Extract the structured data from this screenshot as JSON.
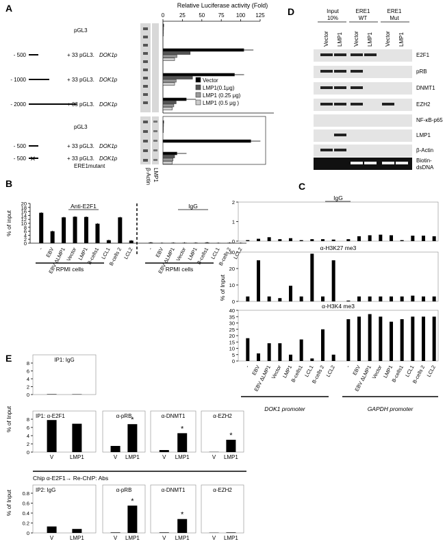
{
  "panels": {
    "A": {
      "letter": "A",
      "xlabel": "Relative Luciferase activity (Fold)",
      "xticks": [
        "0",
        "25",
        "50",
        "75",
        "100",
        "125"
      ],
      "xlim": [
        0,
        125
      ],
      "constructs": [
        {
          "label": "pGL3",
          "prefix": "",
          "suffix": ""
        },
        {
          "label": "+ 33 pGL3.",
          "prefix": "- 500",
          "suffix": "DOK1p"
        },
        {
          "label": "+ 33 pGL3.",
          "prefix": "- 1000",
          "suffix": "DOK1p"
        },
        {
          "label": "+ 33 pGL3.",
          "prefix": "- 2000",
          "suffix": "DOK1p"
        },
        {
          "label": "pGL3",
          "prefix": "",
          "suffix": ""
        },
        {
          "label": "+ 33 pGL3.",
          "prefix": "- 500",
          "suffix": "DOK1p"
        },
        {
          "label": "+ 33 pGL3.",
          "prefix": "- 500",
          "suffix": "DOK1p",
          "extra": "ERE1mutant"
        }
      ],
      "blot_labels": [
        "β-Actin",
        "LMP1"
      ],
      "legend": [
        "Vector",
        "LMP1(0.1μg)",
        "LMP1 (0.25 μg)",
        "LMP1 (0.5 μg )"
      ],
      "colors": [
        "#000000",
        "#555555",
        "#999999",
        "#cccccc"
      ],
      "chart_data": {
        "type": "bar",
        "orientation": "horizontal",
        "series": [
          "Vector",
          "LMP1(0.1μg)",
          "LMP1 (0.25 μg)",
          "LMP1 (0.5 μg )"
        ],
        "groups": [
          {
            "values": [
              1,
              0.8,
              0.6,
              0.5
            ]
          },
          {
            "values": [
              104,
              35,
              18,
              15
            ]
          },
          {
            "values": [
              92,
              38,
              17,
              15
            ]
          },
          {
            "values": [
              30,
              17,
              14,
              12
            ]
          },
          {
            "values": [
              1,
              0.8,
              0.6,
              0.5
            ]
          },
          {
            "values": [
              113,
              0,
              0,
              0
            ]
          },
          {
            "values": [
              18,
              15,
              13,
              12
            ]
          }
        ]
      }
    },
    "B": {
      "letter": "B",
      "ylabel": "% of  input",
      "yticks": [
        "0",
        "2",
        "4",
        "6",
        "8",
        "10",
        "12",
        "14",
        "16",
        "18",
        "20"
      ],
      "ylim": [
        0,
        20
      ],
      "group_labels": [
        "Anti-E2F1",
        "IgG"
      ],
      "categories": [
        "-",
        "EBV",
        "EBV ΔLMP1",
        "Vector",
        "LMP1",
        "B-cells1",
        "LCL1",
        "B-cells 2",
        "LCL2"
      ],
      "footer": [
        "RPMI cells",
        "RPMI cells"
      ],
      "chart_data": {
        "type": "bar",
        "series": [
          {
            "name": "Anti-E2F1",
            "values": [
              15.3,
              6.0,
              13.0,
              13.3,
              13.2,
              9.8,
              1.5,
              13.0,
              1.3
            ]
          },
          {
            "name": "IgG",
            "values": [
              0.3,
              0.1,
              0.2,
              0.2,
              0.2,
              0.3,
              0.1,
              0.2,
              0.1
            ]
          }
        ]
      }
    },
    "C": {
      "letter": "C",
      "ylabel": "% of Input",
      "categories": [
        "-",
        "EBV",
        "EBV ΔLMP1",
        "Vector",
        "LMP1",
        "B-cells1",
        "LCL1",
        "B-cells 2",
        "LCL2"
      ],
      "footer": [
        "DOK1 promoter",
        "GAPDH promoter"
      ],
      "chart_data": [
        {
          "type": "bar",
          "title": "IgG",
          "yticks": [
            "0",
            "1",
            "2"
          ],
          "ylim": [
            0,
            2
          ],
          "values": [
            0.05,
            0.12,
            0.2,
            0.1,
            0.15,
            0.05,
            0.1,
            0.1,
            0.08,
            0.1,
            0.25,
            0.3,
            0.33,
            0.3,
            0.05,
            0.28,
            0.28,
            0.25
          ]
        },
        {
          "type": "bar",
          "title": "α-H3K27 me3",
          "yticks": [
            "0",
            "10",
            "20",
            "30"
          ],
          "ylim": [
            0,
            30
          ],
          "values": [
            3,
            25,
            3,
            2,
            9.5,
            3,
            29,
            3,
            25,
            0.5,
            3,
            3,
            3,
            3,
            3,
            3.5,
            3,
            3
          ]
        },
        {
          "type": "bar",
          "title": "α-H3K4 me3",
          "yticks": [
            "0",
            "5",
            "10",
            "15",
            "20",
            "25",
            "30",
            "35",
            "40"
          ],
          "ylim": [
            0,
            40
          ],
          "values": [
            18,
            6,
            14,
            14,
            5,
            17,
            2,
            25,
            5,
            33,
            35,
            37,
            35,
            31,
            33,
            35,
            35,
            35
          ]
        }
      ]
    },
    "D": {
      "letter": "D",
      "lane_groups": [
        "Input 10%",
        "ERE1 WT",
        "ERE1 Mut"
      ],
      "lanes": [
        "Vector",
        "LMP1",
        "Vector",
        "LMP1",
        "Vector",
        "LMP1"
      ],
      "rows": [
        "E2F1",
        "pRB",
        "DNMT1",
        "EZH2",
        "NF-κB-p65",
        "LMP1",
        "β-Actin",
        "Biotin-dsDNA"
      ]
    },
    "E": {
      "letter": "E",
      "ylabel": "% of Input",
      "rechip_label": "Chip α-E2F1→ Re-ChIP: Abs",
      "xcats": [
        "V",
        "LMP1"
      ],
      "chart_data": [
        {
          "type": "bar",
          "title": "IP1: IgG",
          "yticks": [
            "0",
            "2",
            "4",
            "6",
            "8"
          ],
          "ylim": [
            0,
            8
          ],
          "values": [
            0.1,
            0.08
          ]
        },
        {
          "type": "bar",
          "title": "IP1: α-E2F1",
          "yticks": [
            "0",
            "2",
            "4",
            "6",
            "8"
          ],
          "ylim": [
            0,
            8
          ],
          "values": [
            7.8,
            6.9
          ]
        },
        {
          "type": "bar",
          "title": "α-pRB",
          "values": [
            1.5,
            6.8
          ],
          "star": "*"
        },
        {
          "type": "bar",
          "title": "α-DNMT1",
          "values": [
            0.5,
            4.6
          ],
          "star": "*"
        },
        {
          "type": "bar",
          "title": "α-EZH2",
          "values": [
            0.05,
            3.0
          ],
          "star": "*"
        },
        {
          "type": "bar",
          "title": "IP2:  IgG",
          "yticks": [
            "0",
            "0.2",
            "0.4",
            "0.6",
            "0.8"
          ],
          "ylim": [
            0,
            0.8
          ],
          "values": [
            0.13,
            0.08
          ]
        },
        {
          "type": "bar",
          "title": "α-pRB",
          "values": [
            0.01,
            0.55
          ],
          "star": "*"
        },
        {
          "type": "bar",
          "title": "α-DNMT1",
          "values": [
            0.01,
            0.28
          ],
          "star": "*"
        },
        {
          "type": "bar",
          "title": "α-EZH2",
          "values": [
            0.005,
            0.01
          ]
        }
      ]
    }
  }
}
